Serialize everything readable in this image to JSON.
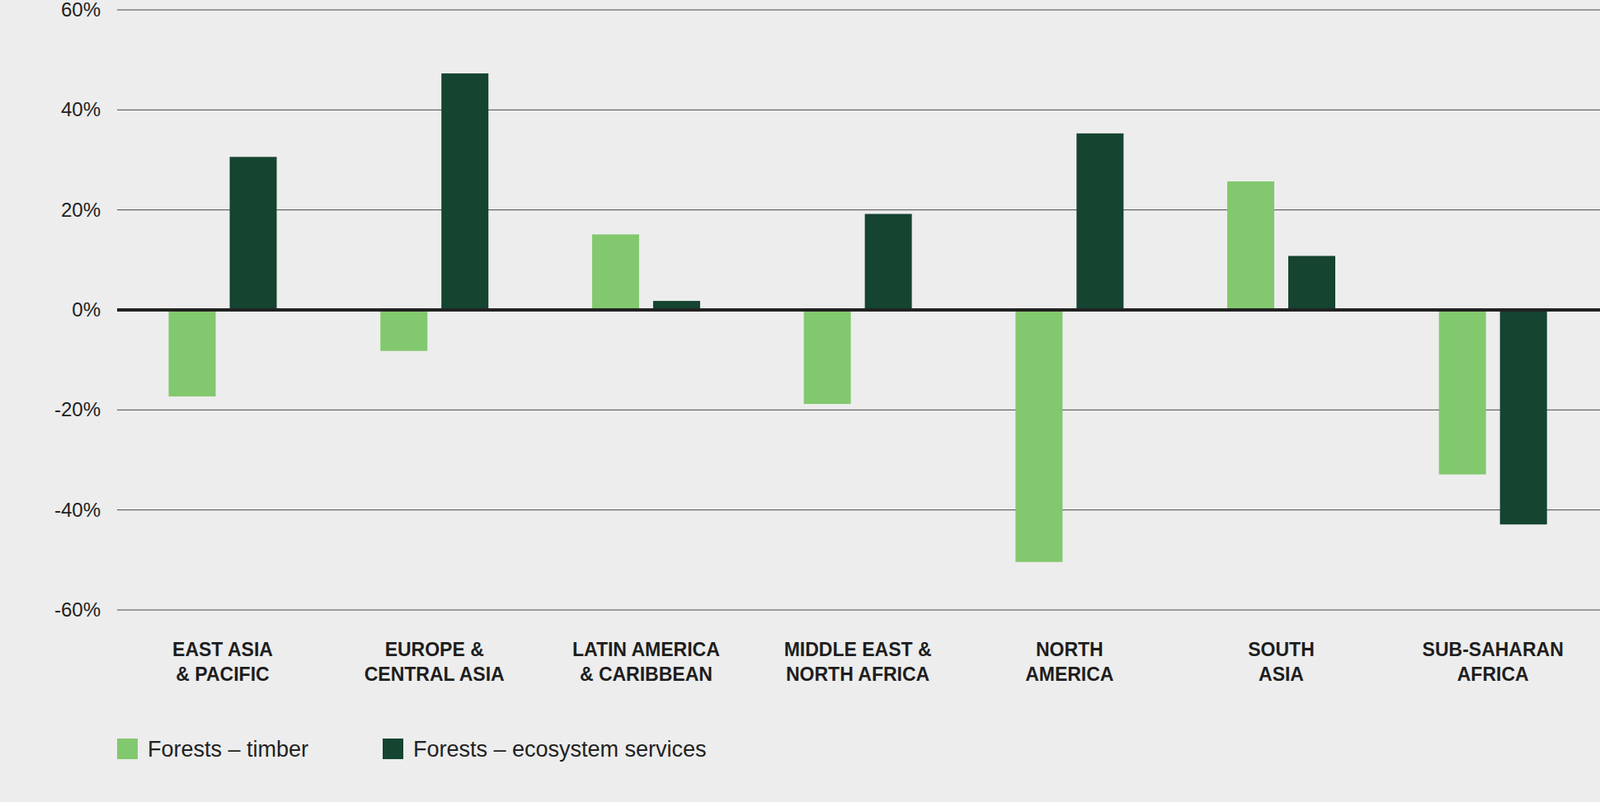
{
  "chart_data": {
    "type": "bar",
    "categories": [
      "EAST ASIA\n& PACIFIC",
      "EUROPE &\nCENTRAL ASIA",
      "LATIN AMERICA\n& CARIBBEAN",
      "MIDDLE EAST &\nNORTH AFRICA",
      "NORTH\nAMERICA",
      "SOUTH\nASIA",
      "SUB-SAHARAN\nAFRICA"
    ],
    "series": [
      {
        "name": "Forests – timber",
        "color": "#82c86e",
        "values": [
          -17.3,
          -8.2,
          15.1,
          -18.8,
          -50.4,
          25.7,
          -32.9
        ]
      },
      {
        "name": "Forests – ecosystem services",
        "color": "#154431",
        "values": [
          30.6,
          47.3,
          1.8,
          19.2,
          35.3,
          10.8,
          -42.9
        ]
      }
    ],
    "ylim": [
      -60,
      60
    ],
    "yticks": [
      {
        "value": -60,
        "label": "-60%"
      },
      {
        "value": -40,
        "label": "-40%"
      },
      {
        "value": -20,
        "label": "-20%"
      },
      {
        "value": 0,
        "label": "0%"
      },
      {
        "value": 20,
        "label": "20%"
      },
      {
        "value": 40,
        "label": "40%"
      },
      {
        "value": 60,
        "label": "60%"
      }
    ],
    "grid": true,
    "legend": "bottom"
  }
}
